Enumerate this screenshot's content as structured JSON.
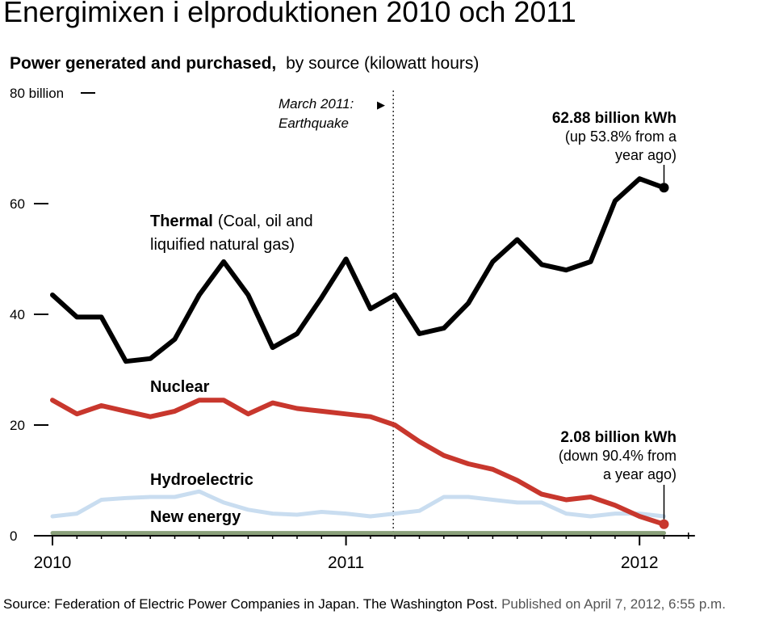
{
  "page_title": "Energimixen i elproduktionen 2010 och 2011",
  "source": {
    "text": "Source: Federation of Electric Power Companies in Japan. The Washington Post.",
    "published": "Published on April 7, 2012, 6:55 p.m."
  },
  "colors": {
    "thermal": "#000000",
    "nuclear": "#c8372d",
    "hydro": "#c9ddf0",
    "new_energy": "#8aa07a",
    "axis": "#000000"
  },
  "chart_data": {
    "type": "line",
    "title": "Power generated and purchased,",
    "subtitle": "by source (kilowatt hours)",
    "ylim": [
      0,
      80
    ],
    "yticks": [
      0,
      20,
      40,
      60,
      80
    ],
    "ytick_labels": [
      "0",
      "20",
      "40",
      "60",
      "80 billion"
    ],
    "x_range": [
      "2010-01",
      "2012-03"
    ],
    "xtick_labels": [
      {
        "x": "2010-01",
        "label": "2010"
      },
      {
        "x": "2011-01",
        "label": "2011"
      },
      {
        "x": "2012-01",
        "label": "2012"
      }
    ],
    "x": [
      "2010-01",
      "2010-02",
      "2010-03",
      "2010-04",
      "2010-05",
      "2010-06",
      "2010-07",
      "2010-08",
      "2010-09",
      "2010-10",
      "2010-11",
      "2010-12",
      "2011-01",
      "2011-02",
      "2011-03",
      "2011-04",
      "2011-05",
      "2011-06",
      "2011-07",
      "2011-08",
      "2011-09",
      "2011-10",
      "2011-11",
      "2011-12",
      "2012-01",
      "2012-02"
    ],
    "series": [
      {
        "name": "Thermal",
        "key": "thermal",
        "values": [
          43.5,
          39.5,
          39.5,
          31.5,
          32,
          35.5,
          43.5,
          49.5,
          43.5,
          34,
          36.5,
          43,
          50,
          41,
          43.5,
          36.5,
          37.5,
          42,
          49.5,
          53.5,
          49,
          48,
          49.5,
          60.5,
          64.5,
          62.88
        ]
      },
      {
        "name": "Nuclear",
        "key": "nuclear",
        "values": [
          24.5,
          22,
          23.5,
          22.5,
          21.5,
          22.5,
          24.5,
          24.5,
          22,
          24,
          23,
          22.5,
          22,
          21.5,
          20,
          17,
          14.5,
          13,
          12,
          10,
          7.5,
          6.5,
          7,
          5.5,
          3.5,
          2.08
        ]
      },
      {
        "name": "Hydroelectric",
        "key": "hydro",
        "values": [
          3.5,
          4,
          6.5,
          6.8,
          7,
          7,
          8,
          6,
          4.7,
          4,
          3.8,
          4.3,
          4,
          3.5,
          4,
          4.5,
          7,
          7,
          6.5,
          6,
          6,
          4,
          3.5,
          4,
          4,
          3.5
        ]
      },
      {
        "name": "New energy",
        "key": "new_energy",
        "values": [
          0.5,
          0.5,
          0.5,
          0.5,
          0.5,
          0.5,
          0.5,
          0.5,
          0.5,
          0.5,
          0.5,
          0.5,
          0.5,
          0.5,
          0.5,
          0.5,
          0.5,
          0.5,
          0.5,
          0.5,
          0.5,
          0.5,
          0.5,
          0.5,
          0.5,
          0.5
        ]
      }
    ],
    "series_labels": {
      "thermal_bold": "Thermal",
      "thermal_rest": "(Coal, oil and",
      "thermal_line2": "liquified natural gas)",
      "nuclear": "Nuclear",
      "hydro": "Hydroelectric",
      "new_energy": "New energy"
    },
    "event_marker": {
      "x": "2011-03",
      "line1": "March 2011:",
      "arrow": "▶",
      "line2": "Earthquake"
    },
    "annotations": {
      "thermal_end": {
        "line1": "62.88 billion kWh",
        "line2": "(up 53.8% from a",
        "line3": "year ago)"
      },
      "nuclear_end": {
        "line1": "2.08 billion kWh",
        "line2": "(down 90.4% from",
        "line3": "a year ago)"
      }
    },
    "grid": false,
    "legend": "none"
  }
}
